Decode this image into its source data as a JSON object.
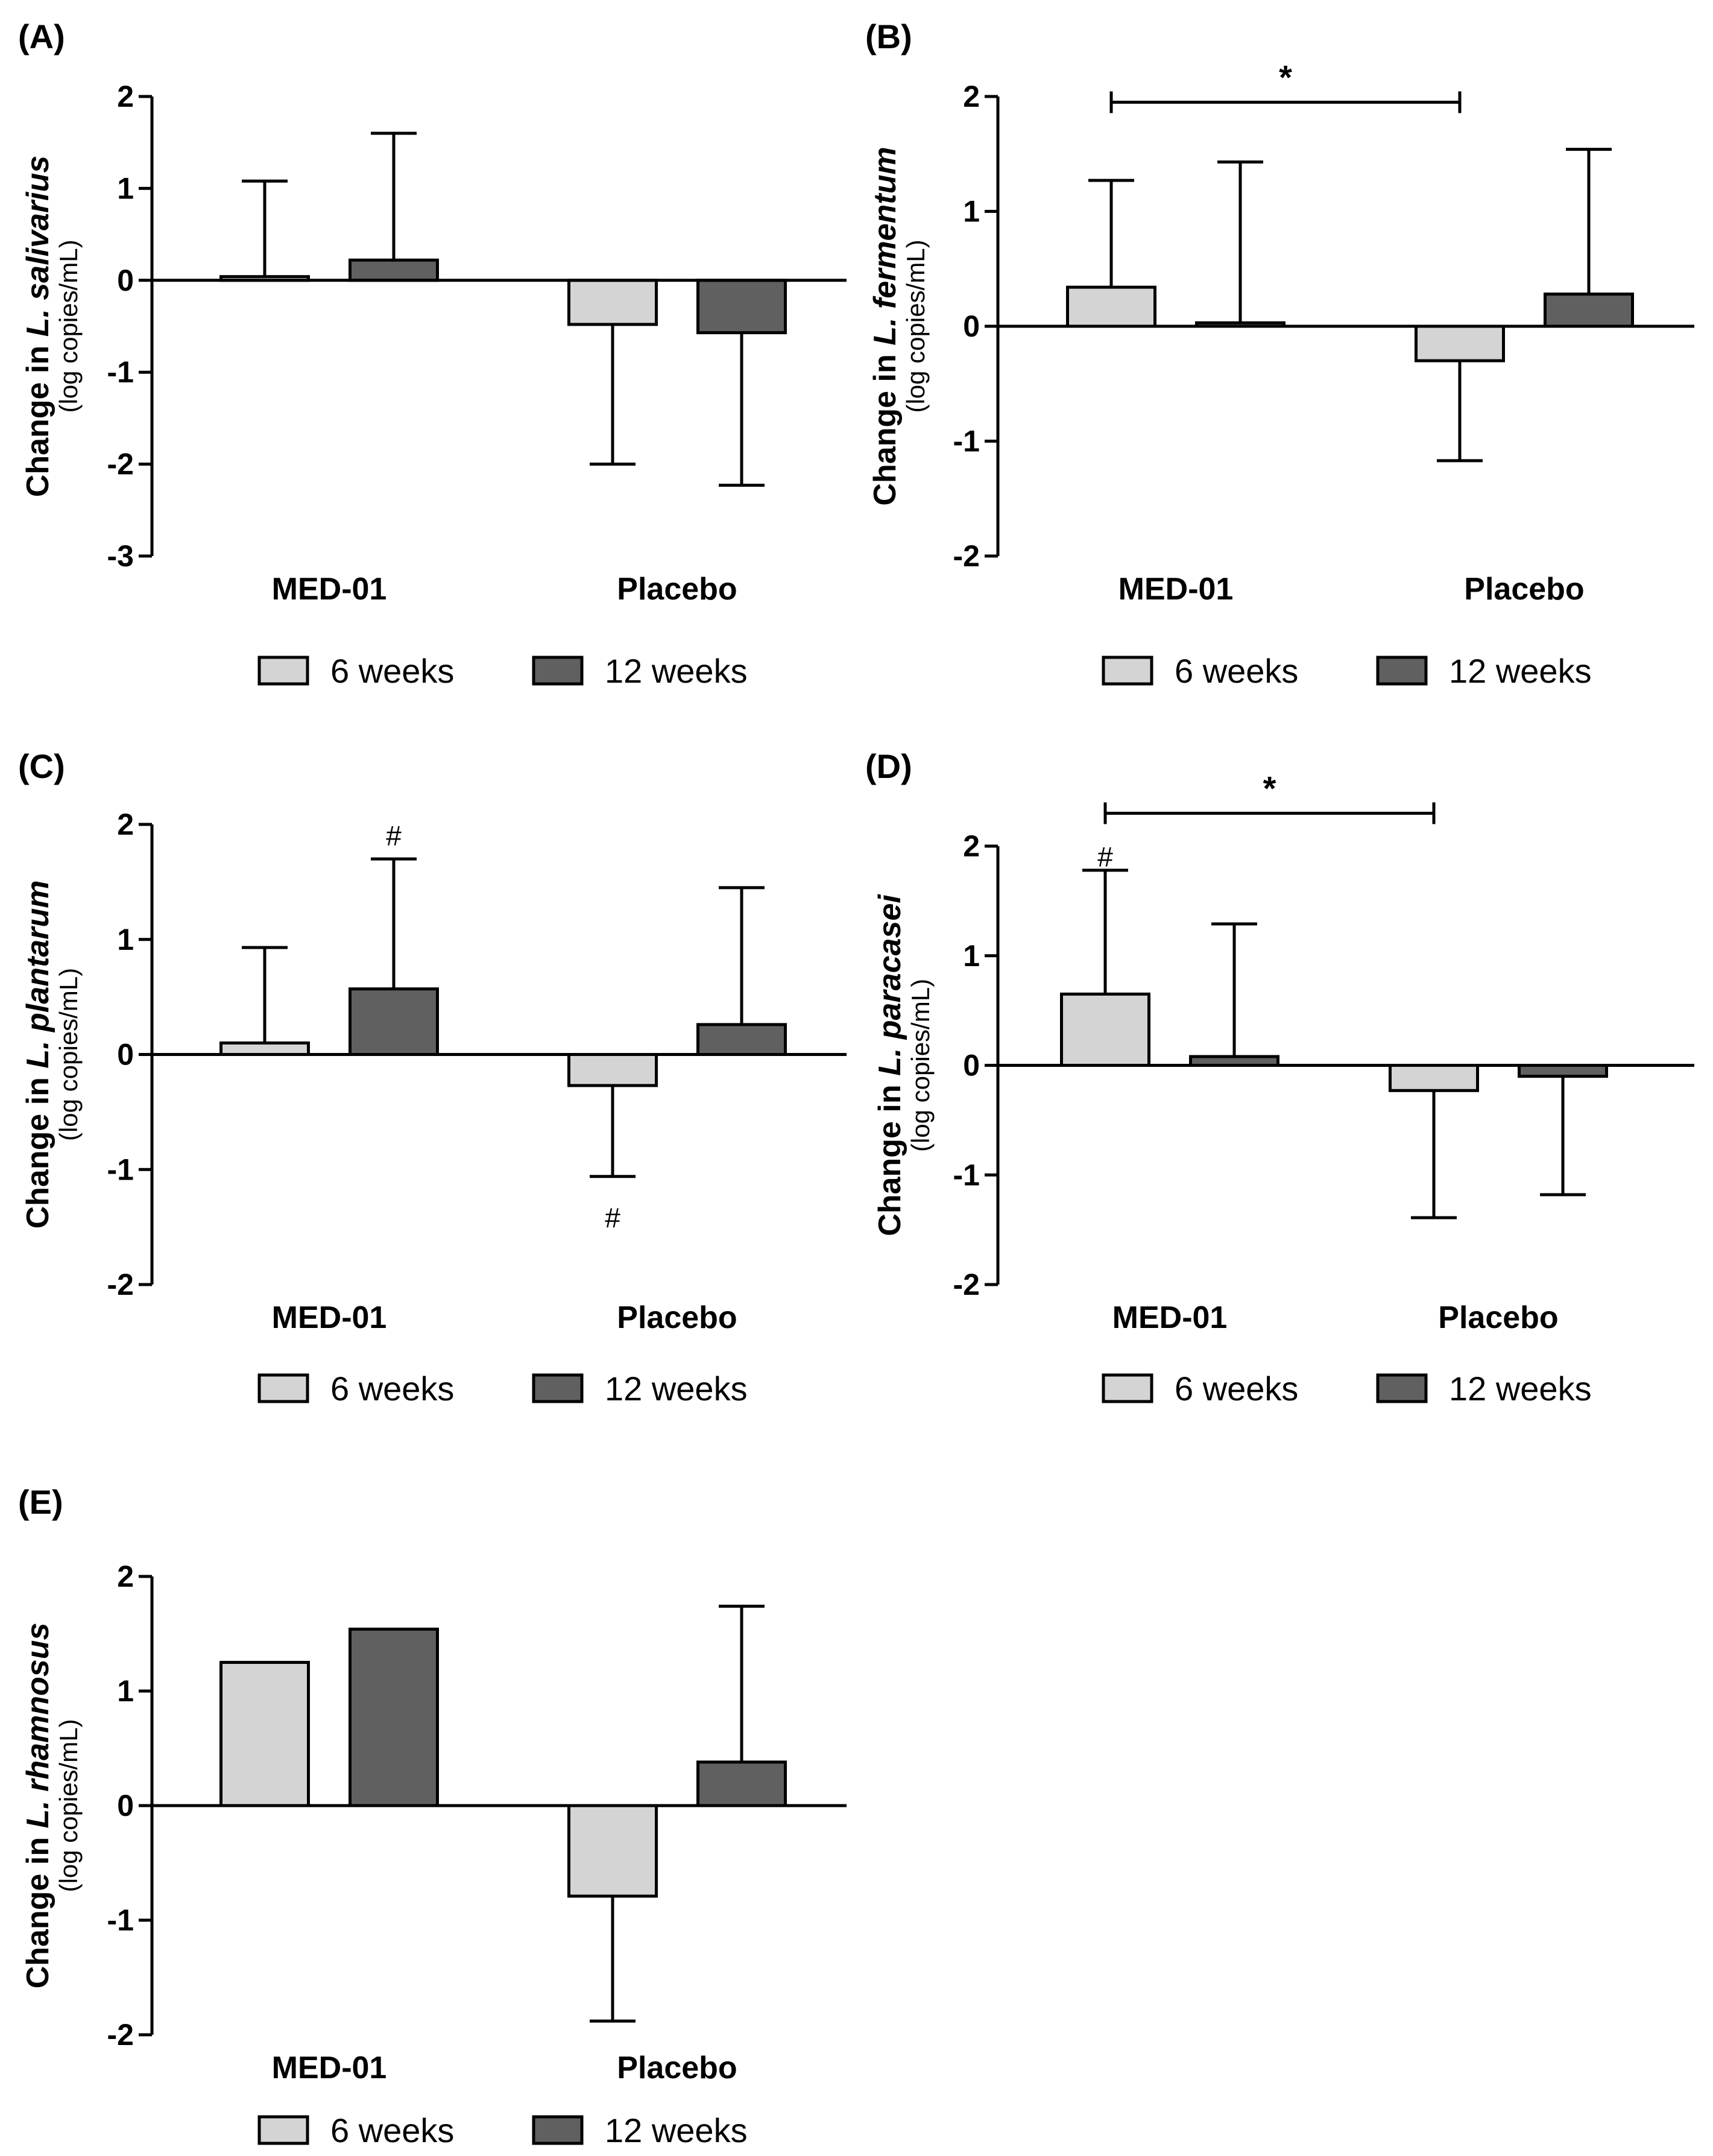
{
  "figure_title": "",
  "legend_items": [
    {
      "label": "6 weeks",
      "color": "#d4d4d4"
    },
    {
      "label": "12 weeks",
      "color": "#606060"
    }
  ],
  "y_unit_label": "(log copies/mL)",
  "y_label_prefix": "Change in ",
  "chart_data": [
    {
      "panel": "(A)",
      "type": "bar",
      "species": "L. salivarius",
      "categories": [
        "MED-01",
        "Placebo"
      ],
      "series": [
        {
          "name": "6 weeks",
          "values": [
            0.04,
            -0.48
          ],
          "error_upper": [
            1.08,
            null
          ],
          "error_lower": [
            null,
            -2.0
          ]
        },
        {
          "name": "12 weeks",
          "values": [
            0.22,
            -0.57
          ],
          "error_upper": [
            1.6,
            null
          ],
          "error_lower": [
            null,
            -2.23
          ]
        }
      ],
      "ylim": [
        -3,
        2
      ],
      "yticks": [
        -3,
        -2,
        -1,
        0,
        1,
        2
      ],
      "significance": []
    },
    {
      "panel": "(B)",
      "type": "bar",
      "species": "L. fermentum",
      "categories": [
        "MED-01",
        "Placebo"
      ],
      "series": [
        {
          "name": "6 weeks",
          "values": [
            0.34,
            -0.3
          ],
          "error_upper": [
            1.27,
            null
          ],
          "error_lower": [
            null,
            -1.17
          ]
        },
        {
          "name": "12 weeks",
          "values": [
            0.03,
            0.28
          ],
          "error_upper": [
            1.43,
            1.54
          ],
          "error_lower": [
            null,
            null
          ]
        }
      ],
      "ylim": [
        -2,
        2
      ],
      "yticks": [
        -2,
        -1,
        0,
        1,
        2
      ],
      "significance": [
        {
          "type": "bracket",
          "label": "*",
          "from_category": 0,
          "to_category": 1,
          "y": 1.95
        }
      ]
    },
    {
      "panel": "(C)",
      "type": "bar",
      "species": "L. plantarum",
      "categories": [
        "MED-01",
        "Placebo"
      ],
      "series": [
        {
          "name": "6 weeks",
          "values": [
            0.1,
            -0.27
          ],
          "error_upper": [
            0.93,
            null
          ],
          "error_lower": [
            null,
            -1.06
          ]
        },
        {
          "name": "12 weeks",
          "values": [
            0.57,
            0.26
          ],
          "error_upper": [
            1.7,
            1.45
          ],
          "error_lower": [
            null,
            null
          ]
        }
      ],
      "ylim": [
        -2,
        2
      ],
      "yticks": [
        -2,
        -1,
        0,
        1,
        2
      ],
      "significance": [
        {
          "type": "mark",
          "label": "#",
          "category": 0,
          "series": 1,
          "y": 1.9
        },
        {
          "type": "mark",
          "label": "#",
          "category": 1,
          "series": 0,
          "y": -1.42
        }
      ]
    },
    {
      "panel": "(D)",
      "type": "bar",
      "species": "L. paracasei",
      "categories": [
        "MED-01",
        "Placebo"
      ],
      "series": [
        {
          "name": "6 weeks",
          "values": [
            0.65,
            -0.23
          ],
          "error_upper": [
            1.78,
            null
          ],
          "error_lower": [
            null,
            -1.39
          ]
        },
        {
          "name": "12 weeks",
          "values": [
            0.08,
            -0.1
          ],
          "error_upper": [
            1.29,
            null
          ],
          "error_lower": [
            null,
            -1.18
          ]
        }
      ],
      "ylim": [
        -2,
        2
      ],
      "yticks": [
        -2,
        -1,
        0,
        1,
        2
      ],
      "significance": [
        {
          "type": "bracket",
          "label": "*",
          "from_category": 0,
          "to_category": 1,
          "y": 2.3
        },
        {
          "type": "mark",
          "label": "#",
          "category": 0,
          "series": 0,
          "y": 1.9
        }
      ]
    },
    {
      "panel": "(E)",
      "type": "bar",
      "species": "L. rhamnosus",
      "categories": [
        "MED-01",
        "Placebo"
      ],
      "series": [
        {
          "name": "6 weeks",
          "values": [
            1.25,
            -0.79
          ],
          "error_upper": [
            null,
            null
          ],
          "error_lower": [
            null,
            -1.88
          ]
        },
        {
          "name": "12 weeks",
          "values": [
            1.54,
            0.38
          ],
          "error_upper": [
            null,
            1.74
          ],
          "error_lower": [
            null,
            null
          ]
        }
      ],
      "ylim": [
        -2,
        2
      ],
      "yticks": [
        -2,
        -1,
        0,
        1,
        2
      ],
      "significance": []
    }
  ]
}
